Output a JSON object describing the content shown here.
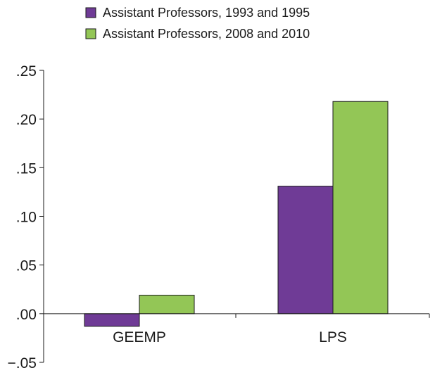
{
  "chart_data": {
    "type": "bar",
    "title": "",
    "xlabel": "",
    "ylabel": "",
    "categories": [
      "GEEMP",
      "LPS"
    ],
    "series": [
      {
        "name": "Assistant Professors, 1993 and 1995",
        "color": "#6f3b96",
        "values": [
          -0.013,
          0.131
        ]
      },
      {
        "name": "Assistant Professors, 2008 and 2010",
        "color": "#93c656",
        "values": [
          0.019,
          0.218
        ]
      }
    ],
    "ylim": [
      -0.05,
      0.25
    ],
    "yticks": [
      {
        "value": 0.25,
        "label": ".25"
      },
      {
        "value": 0.2,
        "label": ".20"
      },
      {
        "value": 0.15,
        "label": ".15"
      },
      {
        "value": 0.1,
        "label": ".10"
      },
      {
        "value": 0.05,
        "label": ".05"
      },
      {
        "value": 0.0,
        "label": ".00"
      },
      {
        "value": -0.05,
        "label": "−.05"
      }
    ],
    "grid": false,
    "legend": "top-left"
  }
}
